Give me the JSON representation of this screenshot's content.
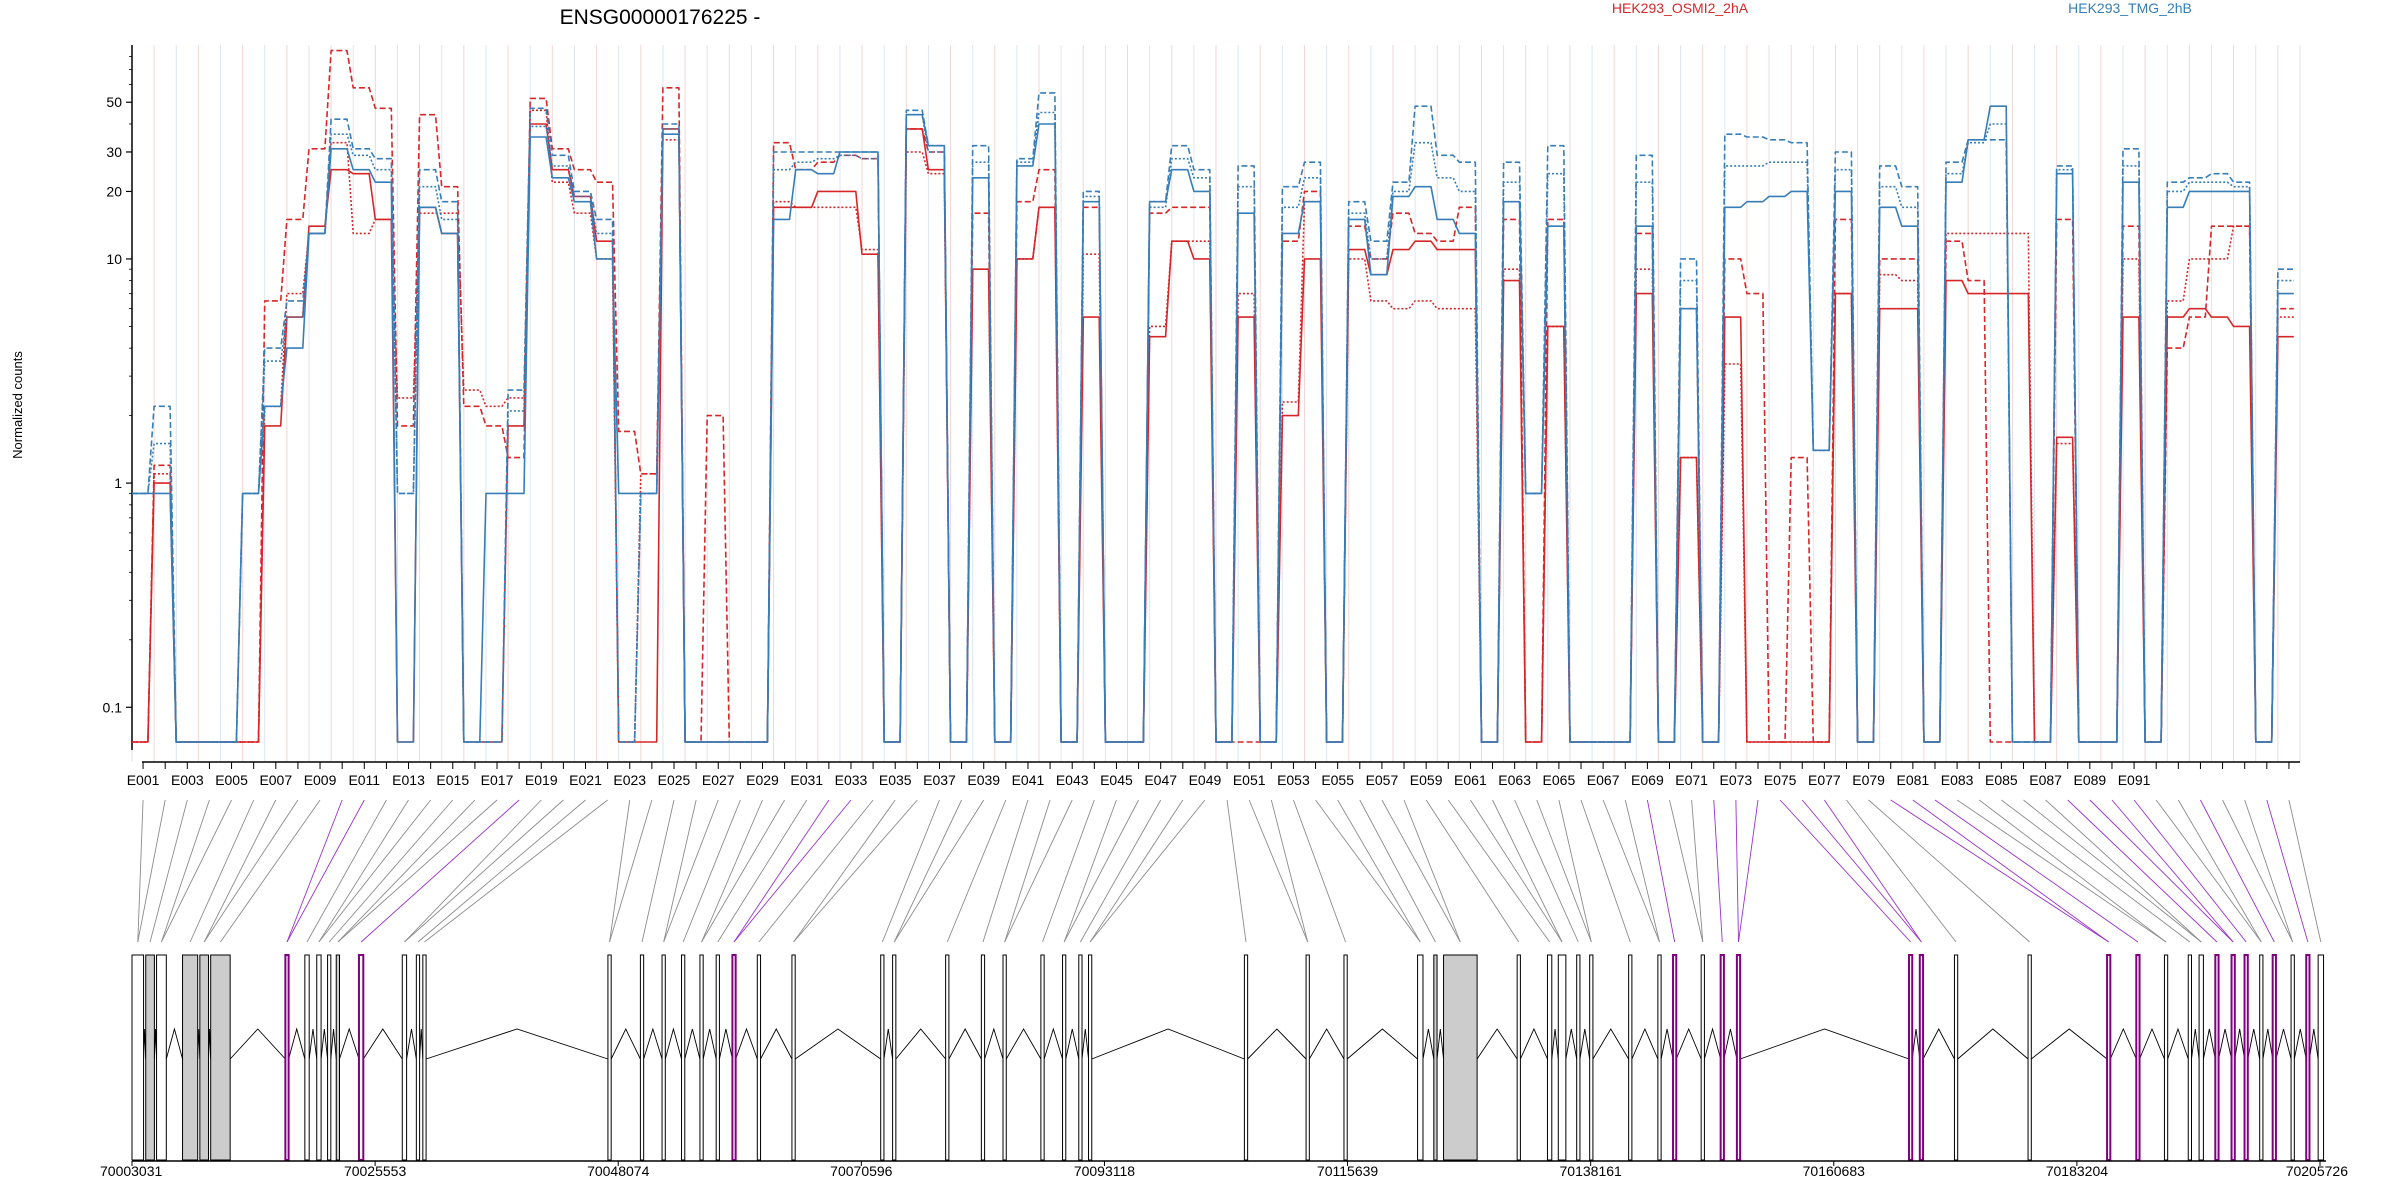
{
  "chart_data": {
    "type": "line",
    "title": "ENSG00000176225 -",
    "ylabel": "Normalized counts",
    "xlabel": "",
    "y_scale": "log",
    "y_ticks": [
      0.1,
      1,
      10,
      20,
      30,
      50
    ],
    "y_tick_labels": [
      "0.1",
      "1",
      "10",
      "20",
      "30",
      "50"
    ],
    "ylim": [
      0.07,
      90
    ],
    "legend_placement": "top-right",
    "legend": [
      {
        "name": "HEK293_OSMI2_2hA",
        "color": "#d62728"
      },
      {
        "name": "HEK293_TMG_2hB",
        "color": "#377eb8"
      }
    ],
    "exon_labels": [
      "E001",
      "E003",
      "E005",
      "E007",
      "E009",
      "E011",
      "E013",
      "E015",
      "E017",
      "E019",
      "E021",
      "E023",
      "E025",
      "E027",
      "E029",
      "E031",
      "E033",
      "E035",
      "E037",
      "E039",
      "E041",
      "E043",
      "E045",
      "E047",
      "E049",
      "E051",
      "E053",
      "E055",
      "E057",
      "E059",
      "E061",
      "E063",
      "E065",
      "E067",
      "E069",
      "E071",
      "E073",
      "E075",
      "E077",
      "E079",
      "E081",
      "E083",
      "E085",
      "E087",
      "E089",
      "E091"
    ],
    "series": [
      {
        "group": "HEK293_OSMI2_2hA",
        "color": "#d62728",
        "style": "solid",
        "values": [
          0.07,
          1.0,
          0.07,
          0.07,
          0.07,
          0.07,
          1.8,
          5.5,
          14,
          25,
          24,
          15,
          0.07,
          17,
          13,
          0.07,
          0.07,
          1.8,
          40,
          25,
          19,
          12,
          0.07,
          0.07,
          38,
          0.07,
          0.07,
          0.07,
          0.07,
          17,
          17,
          20,
          20,
          10.5,
          0.07,
          38,
          25,
          0.07,
          9,
          0.07,
          10,
          17,
          0.07,
          5.5,
          0.07,
          0.07,
          4.5,
          12,
          10,
          0.07,
          5.5,
          0.07,
          2,
          10,
          0.07,
          11,
          8.5,
          11,
          12,
          11,
          11,
          0.07,
          8,
          0.07,
          5,
          0.07,
          0.07,
          0.07,
          7,
          0.07,
          1.3,
          0.07,
          5.5,
          0.07,
          0.07,
          0.07,
          0.07,
          7,
          0.07,
          6,
          6,
          0.07,
          8,
          7,
          7,
          7,
          0.07,
          1.6,
          0.07,
          0.07,
          5.5,
          0.07,
          5.5,
          6,
          5.5,
          5,
          0.07,
          4.5
        ]
      },
      {
        "group": "HEK293_OSMI2_2hA",
        "color": "#d62728",
        "style": "dashed",
        "values": [
          0.07,
          1.2,
          0.07,
          0.07,
          0.07,
          0.07,
          6.5,
          15,
          31,
          85,
          58,
          47,
          1.8,
          44,
          21,
          2.2,
          1.8,
          1.3,
          52,
          31,
          25,
          22,
          1.7,
          1.1,
          58,
          0.07,
          2,
          0.07,
          0.07,
          33,
          25,
          27,
          29,
          28,
          0.07,
          38,
          30,
          0.07,
          16,
          0.07,
          18,
          25,
          0.07,
          17,
          0.07,
          0.07,
          16,
          17,
          17,
          0.07,
          0.07,
          0.07,
          12,
          20,
          0.07,
          14,
          10,
          16,
          13,
          12,
          17,
          0.07,
          15,
          0.07,
          15,
          0.07,
          0.07,
          0.07,
          13,
          0.07,
          6,
          0.07,
          10,
          7,
          0.07,
          1.3,
          0.07,
          15,
          0.07,
          10,
          10,
          0.07,
          12,
          8,
          0.07,
          0.07,
          0.07,
          15,
          0.07,
          0.07,
          14,
          0.07,
          4,
          5.5,
          14,
          14,
          0.07,
          6
        ]
      },
      {
        "group": "HEK293_OSMI2_2hA",
        "color": "#d62728",
        "style": "dotted",
        "values": [
          0.07,
          1.1,
          0.07,
          0.07,
          0.07,
          0.07,
          2.2,
          7,
          13,
          33,
          13,
          15,
          2.4,
          16,
          16,
          2.6,
          2.2,
          2.4,
          46,
          22,
          16,
          10,
          0.07,
          1.1,
          34,
          0.07,
          0.07,
          0.07,
          0.07,
          18,
          17,
          17,
          17,
          11,
          0.07,
          30,
          24,
          0.07,
          9,
          0.07,
          10,
          17,
          0.07,
          10.5,
          0.07,
          0.07,
          5,
          12,
          12,
          0.07,
          7,
          0.07,
          2.3,
          18,
          0.07,
          10,
          6.5,
          6,
          6.5,
          6,
          6,
          0.07,
          9,
          0.07,
          5,
          0.07,
          0.07,
          0.07,
          9,
          0.07,
          1.3,
          0.07,
          3.4,
          0.07,
          0.07,
          0.07,
          0.07,
          7,
          0.07,
          8.5,
          8,
          0.07,
          13,
          13,
          13,
          13,
          0.07,
          1.5,
          0.07,
          0.07,
          10,
          0.07,
          6.5,
          10,
          10,
          14,
          0.07,
          5.5
        ]
      },
      {
        "group": "HEK293_TMG_2hB",
        "color": "#377eb8",
        "style": "solid",
        "values": [
          0.9,
          0.9,
          0.07,
          0.07,
          0.07,
          0.9,
          2.2,
          4,
          13,
          31,
          25,
          22,
          0.07,
          17,
          13,
          0.07,
          0.9,
          0.9,
          35,
          23,
          18,
          10,
          0.9,
          0.9,
          36,
          0.07,
          0.07,
          0.07,
          0.07,
          15,
          25,
          24,
          30,
          30,
          0.07,
          44,
          32,
          0.07,
          23,
          0.07,
          26,
          40,
          0.07,
          18,
          0.07,
          0.07,
          18,
          25,
          20,
          0.07,
          16,
          0.07,
          13,
          18,
          0.07,
          15,
          8.5,
          19,
          21,
          15,
          13,
          0.07,
          18,
          0.9,
          14,
          0.07,
          0.07,
          0.07,
          14,
          0.07,
          6,
          0.07,
          17,
          18,
          19,
          20,
          1.4,
          20,
          0.07,
          17,
          14,
          0.07,
          22,
          34,
          48,
          0.07,
          0.07,
          24,
          0.07,
          0.07,
          22,
          0.07,
          17,
          20,
          20,
          20,
          0.07,
          7
        ]
      },
      {
        "group": "HEK293_TMG_2hB",
        "color": "#377eb8",
        "style": "dashed",
        "values": [
          0.9,
          2.2,
          0.07,
          0.07,
          0.07,
          0.9,
          4,
          6.5,
          13,
          42,
          31,
          28,
          0.9,
          25,
          18,
          0.07,
          0.07,
          2.6,
          47,
          29,
          20,
          15,
          0.07,
          0.9,
          40,
          0.07,
          0.07,
          0.07,
          0.07,
          30,
          30,
          30,
          30,
          30,
          0.07,
          46,
          32,
          0.07,
          32,
          0.07,
          28,
          55,
          0.07,
          20,
          0.07,
          0.07,
          18,
          32,
          25,
          0.07,
          26,
          0.07,
          21,
          27,
          0.07,
          18,
          12,
          22,
          48,
          29,
          27,
          0.07,
          27,
          0.9,
          32,
          0.07,
          0.07,
          0.07,
          29,
          0.07,
          10,
          0.07,
          36,
          35,
          34,
          33,
          1.4,
          30,
          0.07,
          26,
          21,
          0.07,
          27,
          34,
          34,
          0.07,
          0.07,
          26,
          0.07,
          0.07,
          31,
          0.07,
          22,
          23,
          24,
          22,
          0.07,
          9
        ]
      },
      {
        "group": "HEK293_TMG_2hB",
        "color": "#377eb8",
        "style": "dotted",
        "values": [
          0.9,
          1.5,
          0.07,
          0.07,
          0.07,
          0.9,
          3.5,
          5.5,
          13,
          36,
          29,
          25,
          0.9,
          21,
          15,
          0.07,
          0.07,
          2.1,
          39,
          26,
          19,
          13,
          0.07,
          0.9,
          38,
          0.07,
          0.07,
          0.07,
          0.07,
          25,
          27,
          28,
          29,
          28,
          0.07,
          44,
          30,
          0.07,
          27,
          0.07,
          27,
          45,
          0.07,
          19,
          0.07,
          0.07,
          17,
          28,
          23,
          0.07,
          21,
          0.07,
          17,
          23,
          0.07,
          16,
          10,
          20,
          33,
          23,
          20,
          0.07,
          22,
          0.9,
          24,
          0.07,
          0.07,
          0.07,
          22,
          0.07,
          8,
          0.07,
          26,
          26,
          27,
          27,
          1.4,
          25,
          0.07,
          21,
          17,
          0.07,
          24,
          33,
          40,
          0.07,
          0.07,
          25,
          0.07,
          0.07,
          26,
          0.07,
          20,
          22,
          22,
          21,
          0.07,
          8
        ]
      }
    ],
    "genomic_axis": {
      "tick_labels": [
        "70003031",
        "70025553",
        "70048074",
        "70070596",
        "70093118",
        "70115639",
        "70138161",
        "70160683",
        "70183204",
        "70205726"
      ],
      "start": 70003031,
      "end": 70205726
    },
    "exon_model": {
      "exons": [
        [
          70003031,
          70004100,
          "white"
        ],
        [
          70004300,
          70005100,
          "grey"
        ],
        [
          70005300,
          70006200,
          "white"
        ],
        [
          70007700,
          70009100,
          "grey"
        ],
        [
          70009300,
          70010100,
          "grey"
        ],
        [
          70010300,
          70012100,
          "grey"
        ],
        [
          70017200,
          70017500,
          "purple"
        ],
        [
          70019000,
          70019400,
          "white"
        ],
        [
          70020100,
          70020500,
          "white"
        ],
        [
          70021100,
          70021400,
          "white"
        ],
        [
          70021900,
          70022200,
          "grey"
        ],
        [
          70024000,
          70024400,
          "purple"
        ],
        [
          70028000,
          70028400,
          "white"
        ],
        [
          70029300,
          70029600,
          "white"
        ],
        [
          70029900,
          70030200,
          "white"
        ],
        [
          70047000,
          70047300,
          "white"
        ],
        [
          70050000,
          70050300,
          "white"
        ],
        [
          70052000,
          70052300,
          "white"
        ],
        [
          70053800,
          70054100,
          "white"
        ],
        [
          70055500,
          70055800,
          "white"
        ],
        [
          70057000,
          70057300,
          "white"
        ],
        [
          70058500,
          70058800,
          "purple"
        ],
        [
          70060800,
          70061100,
          "white"
        ],
        [
          70064000,
          70064300,
          "white"
        ],
        [
          70072200,
          70072500,
          "white"
        ],
        [
          70073300,
          70073600,
          "white"
        ],
        [
          70078200,
          70078500,
          "white"
        ],
        [
          70081500,
          70081800,
          "white"
        ],
        [
          70083500,
          70083800,
          "white"
        ],
        [
          70087000,
          70087300,
          "white"
        ],
        [
          70089000,
          70089300,
          "white"
        ],
        [
          70090500,
          70090800,
          "white"
        ],
        [
          70091400,
          70091700,
          "white"
        ],
        [
          70105800,
          70106100,
          "white"
        ],
        [
          70111500,
          70111800,
          "white"
        ],
        [
          70115000,
          70115300,
          "white"
        ],
        [
          70121800,
          70122300,
          "white"
        ],
        [
          70123300,
          70123600,
          "grey"
        ],
        [
          70124200,
          70127300,
          "grey"
        ],
        [
          70131000,
          70131300,
          "white"
        ],
        [
          70133800,
          70134200,
          "white"
        ],
        [
          70134800,
          70135500,
          "white"
        ],
        [
          70136500,
          70136800,
          "white"
        ],
        [
          70137700,
          70138000,
          "white"
        ],
        [
          70141300,
          70141600,
          "white"
        ],
        [
          70144000,
          70144300,
          "white"
        ],
        [
          70145400,
          70145700,
          "purple"
        ],
        [
          70148000,
          70148300,
          "white"
        ],
        [
          70149800,
          70150100,
          "purple"
        ],
        [
          70151300,
          70151600,
          "purple"
        ],
        [
          70167200,
          70167500,
          "purple"
        ],
        [
          70168200,
          70168500,
          "purple"
        ],
        [
          70171400,
          70171700,
          "white"
        ],
        [
          70178200,
          70178500,
          "white"
        ],
        [
          70185500,
          70185800,
          "purple"
        ],
        [
          70188200,
          70188500,
          "purple"
        ],
        [
          70190800,
          70191100,
          "white"
        ],
        [
          70193000,
          70193300,
          "white"
        ],
        [
          70194000,
          70194400,
          "white"
        ],
        [
          70195500,
          70195800,
          "purple"
        ],
        [
          70197000,
          70197300,
          "purple"
        ],
        [
          70198200,
          70198500,
          "purple"
        ],
        [
          70199600,
          70199900,
          "white"
        ],
        [
          70200800,
          70201100,
          "purple"
        ],
        [
          70202500,
          70202800,
          "white"
        ],
        [
          70203900,
          70204200,
          "purple"
        ],
        [
          70205000,
          70205500,
          "white"
        ]
      ]
    }
  }
}
